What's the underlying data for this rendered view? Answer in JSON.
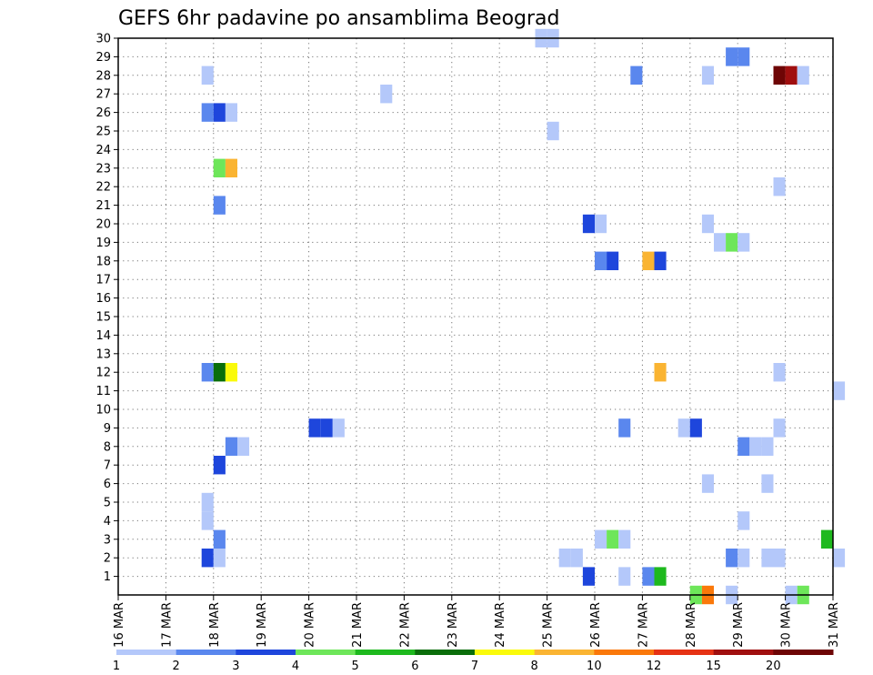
{
  "chart_data": {
    "type": "heatmap",
    "title": "GEFS 6hr padavine po ansamblima Beograd",
    "xlabel": "",
    "ylabel": "",
    "x_ticks": [
      "16 MAR",
      "17 MAR",
      "18 MAR",
      "19 MAR",
      "20 MAR",
      "21 MAR",
      "22 MAR",
      "23 MAR",
      "24 MAR",
      "25 MAR",
      "26 MAR",
      "27 MAR",
      "28 MAR",
      "29 MAR",
      "30 MAR",
      "31 MAR"
    ],
    "y_ticks": [
      "1",
      "2",
      "3",
      "4",
      "5",
      "6",
      "7",
      "8",
      "9",
      "10",
      "11",
      "12",
      "13",
      "14",
      "15",
      "16",
      "17",
      "18",
      "19",
      "20",
      "21",
      "22",
      "23",
      "24",
      "25",
      "26",
      "27",
      "28",
      "29",
      "30"
    ],
    "x_range_days": [
      0,
      15
    ],
    "y_range_members": [
      0,
      30
    ],
    "grid": true,
    "legend_position": "bottom",
    "legend": {
      "labels": [
        "1",
        "2",
        "3",
        "4",
        "5",
        "6",
        "7",
        "8",
        "10",
        "12",
        "15",
        "20"
      ],
      "colors": [
        "#b4c8fa",
        "#5a87ee",
        "#1e46dc",
        "#6ee65a",
        "#1eb91e",
        "#0a6e0a",
        "#fafa0a",
        "#fab432",
        "#fa780a",
        "#e63214",
        "#a00f0f",
        "#6e0505"
      ]
    },
    "cells": [
      {
        "member": 30,
        "step": 35,
        "level": 1
      },
      {
        "member": 30,
        "step": 36,
        "level": 1
      },
      {
        "member": 29,
        "step": 51,
        "level": 2
      },
      {
        "member": 29,
        "step": 52,
        "level": 2
      },
      {
        "member": 28,
        "step": 7,
        "level": 1
      },
      {
        "member": 28,
        "step": 43,
        "level": 2
      },
      {
        "member": 28,
        "step": 49,
        "level": 1
      },
      {
        "member": 28,
        "step": 55,
        "level": 12
      },
      {
        "member": 28,
        "step": 56,
        "level": 11
      },
      {
        "member": 28,
        "step": 57,
        "level": 1
      },
      {
        "member": 27,
        "step": 22,
        "level": 1
      },
      {
        "member": 26,
        "step": 7,
        "level": 2
      },
      {
        "member": 26,
        "step": 8,
        "level": 3
      },
      {
        "member": 26,
        "step": 9,
        "level": 1
      },
      {
        "member": 25,
        "step": 36,
        "level": 1
      },
      {
        "member": 23,
        "step": 8,
        "level": 4
      },
      {
        "member": 23,
        "step": 9,
        "level": 8
      },
      {
        "member": 22,
        "step": 55,
        "level": 1
      },
      {
        "member": 21,
        "step": 8,
        "level": 2
      },
      {
        "member": 20,
        "step": 39,
        "level": 3
      },
      {
        "member": 20,
        "step": 40,
        "level": 1
      },
      {
        "member": 20,
        "step": 49,
        "level": 1
      },
      {
        "member": 19,
        "step": 50,
        "level": 1
      },
      {
        "member": 19,
        "step": 51,
        "level": 4
      },
      {
        "member": 19,
        "step": 52,
        "level": 1
      },
      {
        "member": 18,
        "step": 40,
        "level": 2
      },
      {
        "member": 18,
        "step": 41,
        "level": 3
      },
      {
        "member": 18,
        "step": 44,
        "level": 8
      },
      {
        "member": 18,
        "step": 45,
        "level": 3
      },
      {
        "member": 12,
        "step": 7,
        "level": 2
      },
      {
        "member": 12,
        "step": 8,
        "level": 6
      },
      {
        "member": 12,
        "step": 9,
        "level": 7
      },
      {
        "member": 12,
        "step": 45,
        "level": 8
      },
      {
        "member": 12,
        "step": 55,
        "level": 1
      },
      {
        "member": 11,
        "step": 60,
        "level": 1
      },
      {
        "member": 9,
        "step": 16,
        "level": 3
      },
      {
        "member": 9,
        "step": 17,
        "level": 3
      },
      {
        "member": 9,
        "step": 18,
        "level": 1
      },
      {
        "member": 9,
        "step": 42,
        "level": 2
      },
      {
        "member": 9,
        "step": 47,
        "level": 1
      },
      {
        "member": 9,
        "step": 48,
        "level": 3
      },
      {
        "member": 9,
        "step": 55,
        "level": 1
      },
      {
        "member": 8,
        "step": 9,
        "level": 2
      },
      {
        "member": 8,
        "step": 10,
        "level": 1
      },
      {
        "member": 8,
        "step": 52,
        "level": 2
      },
      {
        "member": 8,
        "step": 53,
        "level": 1
      },
      {
        "member": 8,
        "step": 54,
        "level": 1
      },
      {
        "member": 7,
        "step": 8,
        "level": 3
      },
      {
        "member": 6,
        "step": 49,
        "level": 1
      },
      {
        "member": 6,
        "step": 54,
        "level": 1
      },
      {
        "member": 5,
        "step": 7,
        "level": 1
      },
      {
        "member": 4,
        "step": 7,
        "level": 1
      },
      {
        "member": 4,
        "step": 52,
        "level": 1
      },
      {
        "member": 3,
        "step": 8,
        "level": 2
      },
      {
        "member": 3,
        "step": 40,
        "level": 1
      },
      {
        "member": 3,
        "step": 41,
        "level": 4
      },
      {
        "member": 3,
        "step": 42,
        "level": 1
      },
      {
        "member": 3,
        "step": 59,
        "level": 5
      },
      {
        "member": 2,
        "step": 7,
        "level": 3
      },
      {
        "member": 2,
        "step": 8,
        "level": 1
      },
      {
        "member": 2,
        "step": 37,
        "level": 1
      },
      {
        "member": 2,
        "step": 38,
        "level": 1
      },
      {
        "member": 2,
        "step": 51,
        "level": 2
      },
      {
        "member": 2,
        "step": 52,
        "level": 1
      },
      {
        "member": 2,
        "step": 54,
        "level": 1
      },
      {
        "member": 2,
        "step": 55,
        "level": 1
      },
      {
        "member": 2,
        "step": 60,
        "level": 1
      },
      {
        "member": 1,
        "step": 39,
        "level": 3
      },
      {
        "member": 1,
        "step": 42,
        "level": 1
      },
      {
        "member": 1,
        "step": 44,
        "level": 2
      },
      {
        "member": 1,
        "step": 45,
        "level": 5
      },
      {
        "member": 0,
        "step": 48,
        "level": 4
      },
      {
        "member": 0,
        "step": 49,
        "level": 9
      },
      {
        "member": 0,
        "step": 51,
        "level": 1
      },
      {
        "member": 0,
        "step": 56,
        "level": 1
      },
      {
        "member": 0,
        "step": 57,
        "level": 4
      }
    ]
  }
}
